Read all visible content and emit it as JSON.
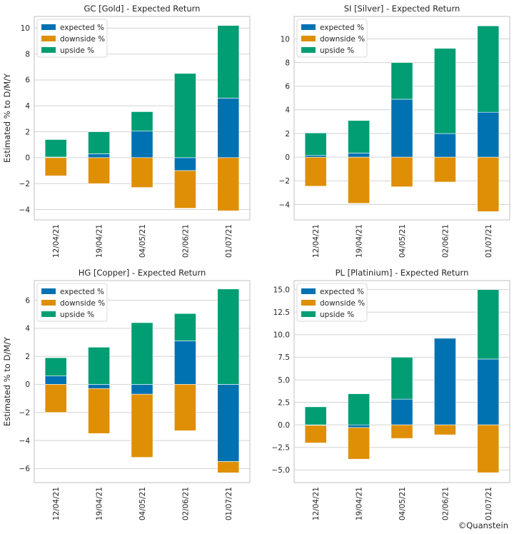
{
  "credit": "©Quanstein",
  "colors": {
    "expected": "#0072b2",
    "downside": "#de8f05",
    "upside": "#029e73",
    "grid": "#d3d3d3",
    "frame": "#cccccc"
  },
  "chart_data": [
    {
      "type": "bar",
      "stacked": true,
      "title": "GC [Gold] - Expected Return",
      "ylabel": "Estimated % to D/M/Y",
      "xlabel": "",
      "ylim": [
        -4.8,
        10.9
      ],
      "yticks": [
        -4,
        -2,
        0,
        2,
        4,
        6,
        8,
        10
      ],
      "ytick_labels": [
        "−4",
        "−2",
        "0",
        "2",
        "4",
        "6",
        "8",
        "10"
      ],
      "categories": [
        "12/04/21",
        "19/04/21",
        "04/05/21",
        "02/06/21",
        "01/07/21"
      ],
      "legend": {
        "position": "top-left",
        "entries": [
          "expected %",
          "downside %",
          "upside %"
        ]
      },
      "series": [
        {
          "name": "expected %",
          "values": [
            0.05,
            0.3,
            2.05,
            -1.0,
            4.6
          ]
        },
        {
          "name": "downside %",
          "values": [
            -1.4,
            -2.0,
            -2.3,
            -2.9,
            -4.1
          ]
        },
        {
          "name": "upside %",
          "values": [
            1.35,
            1.7,
            1.5,
            6.5,
            5.6
          ]
        }
      ]
    },
    {
      "type": "bar",
      "stacked": true,
      "title": "SI [Silver] - Expected Return",
      "ylabel": "",
      "xlabel": "",
      "ylim": [
        -5.3,
        11.9
      ],
      "yticks": [
        -4,
        -2,
        0,
        2,
        4,
        6,
        8,
        10
      ],
      "ytick_labels": [
        "−4",
        "−2",
        "0",
        "2",
        "4",
        "6",
        "8",
        "10"
      ],
      "categories": [
        "12/04/21",
        "19/04/21",
        "04/05/21",
        "02/06/21",
        "01/07/21"
      ],
      "legend": {
        "position": "top-left",
        "entries": [
          "expected %",
          "downside %",
          "upside %"
        ]
      },
      "series": [
        {
          "name": "expected %",
          "values": [
            0.15,
            0.35,
            4.9,
            2.0,
            3.8
          ]
        },
        {
          "name": "downside %",
          "values": [
            -2.45,
            -3.9,
            -2.5,
            -2.1,
            -4.6
          ]
        },
        {
          "name": "upside %",
          "values": [
            1.9,
            2.75,
            3.1,
            7.2,
            7.3
          ]
        }
      ]
    },
    {
      "type": "bar",
      "stacked": true,
      "title": "HG [Copper] - Expected Return",
      "ylabel": "Estimated % to D/M/Y",
      "xlabel": "",
      "ylim": [
        -7.0,
        7.4
      ],
      "yticks": [
        -6,
        -4,
        -2,
        0,
        2,
        4,
        6
      ],
      "ytick_labels": [
        "−6",
        "−4",
        "−2",
        "0",
        "2",
        "4",
        "6"
      ],
      "categories": [
        "12/04/21",
        "19/04/21",
        "04/05/21",
        "02/06/21",
        "01/07/21"
      ],
      "legend": {
        "position": "top-left",
        "entries": [
          "expected %",
          "downside %",
          "upside %"
        ]
      },
      "series": [
        {
          "name": "expected %",
          "values": [
            0.6,
            -0.3,
            -0.7,
            3.1,
            -5.5
          ]
        },
        {
          "name": "downside %",
          "values": [
            -2.0,
            -3.2,
            -4.5,
            -3.3,
            -0.8
          ]
        },
        {
          "name": "upside %",
          "values": [
            1.3,
            2.65,
            4.4,
            1.95,
            6.8
          ]
        }
      ]
    },
    {
      "type": "bar",
      "stacked": true,
      "title": "PL [Platinium] - Expected Return",
      "ylabel": "",
      "xlabel": "",
      "ylim": [
        -6.4,
        16.0
      ],
      "yticks": [
        -5.0,
        -2.5,
        0.0,
        2.5,
        5.0,
        7.5,
        10.0,
        12.5,
        15.0
      ],
      "ytick_labels": [
        "−5.0",
        "−2.5",
        "0.0",
        "2.5",
        "5.0",
        "7.5",
        "10.0",
        "12.5",
        "15.0"
      ],
      "categories": [
        "12/04/21",
        "19/04/21",
        "04/05/21",
        "02/06/21",
        "01/07/21"
      ],
      "legend": {
        "position": "top-left",
        "entries": [
          "expected %",
          "downside %",
          "upside %"
        ]
      },
      "series": [
        {
          "name": "expected %",
          "values": [
            -0.05,
            -0.3,
            2.85,
            9.6,
            7.3
          ]
        },
        {
          "name": "downside %",
          "values": [
            -1.95,
            -3.5,
            -1.5,
            -1.1,
            -5.3
          ]
        },
        {
          "name": "upside %",
          "values": [
            2.0,
            3.45,
            4.65,
            0.0,
            7.7
          ]
        }
      ]
    }
  ]
}
